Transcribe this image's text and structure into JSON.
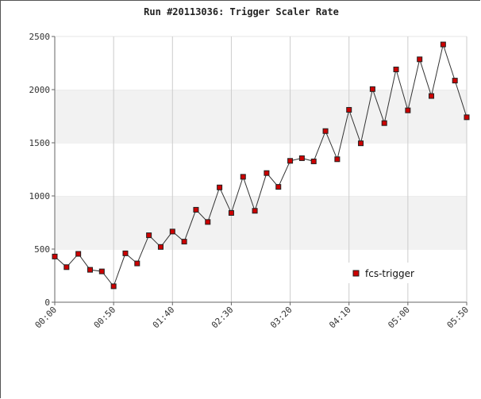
{
  "chart_data": {
    "type": "line",
    "title": "Run #20113036:  Trigger Scaler Rate",
    "xlabel": "",
    "ylabel": "",
    "ylim": [
      0,
      2500
    ],
    "xlim": [
      "00:00",
      "05:50"
    ],
    "y_ticks": [
      0,
      500,
      1000,
      1500,
      2000,
      2500
    ],
    "x_ticks": [
      "00:00",
      "00:50",
      "01:40",
      "02:30",
      "03:20",
      "04:10",
      "05:00",
      "05:50"
    ],
    "grid": "vertical lines at x ticks; alternating horizontal gray bands",
    "legend_position": "lower-right",
    "series": [
      {
        "name": "fcs-trigger",
        "color": "#cc0000",
        "x": [
          "00:00",
          "00:10",
          "00:20",
          "00:30",
          "00:40",
          "00:50",
          "01:00",
          "01:10",
          "01:20",
          "01:30",
          "01:40",
          "01:50",
          "02:00",
          "02:10",
          "02:20",
          "02:30",
          "02:40",
          "02:50",
          "03:00",
          "03:10",
          "03:20",
          "03:30",
          "03:40",
          "03:50",
          "04:00",
          "04:10",
          "04:20",
          "04:30",
          "04:40",
          "04:50",
          "05:00",
          "05:10",
          "05:20",
          "05:30",
          "05:40",
          "05:50"
        ],
        "values": [
          430,
          330,
          455,
          305,
          290,
          150,
          460,
          365,
          630,
          520,
          665,
          570,
          870,
          755,
          1080,
          840,
          1180,
          860,
          1215,
          1085,
          1330,
          1355,
          1325,
          1610,
          1345,
          1810,
          1495,
          2005,
          1685,
          2190,
          1805,
          2285,
          1940,
          2425,
          2085,
          1740
        ]
      }
    ]
  }
}
